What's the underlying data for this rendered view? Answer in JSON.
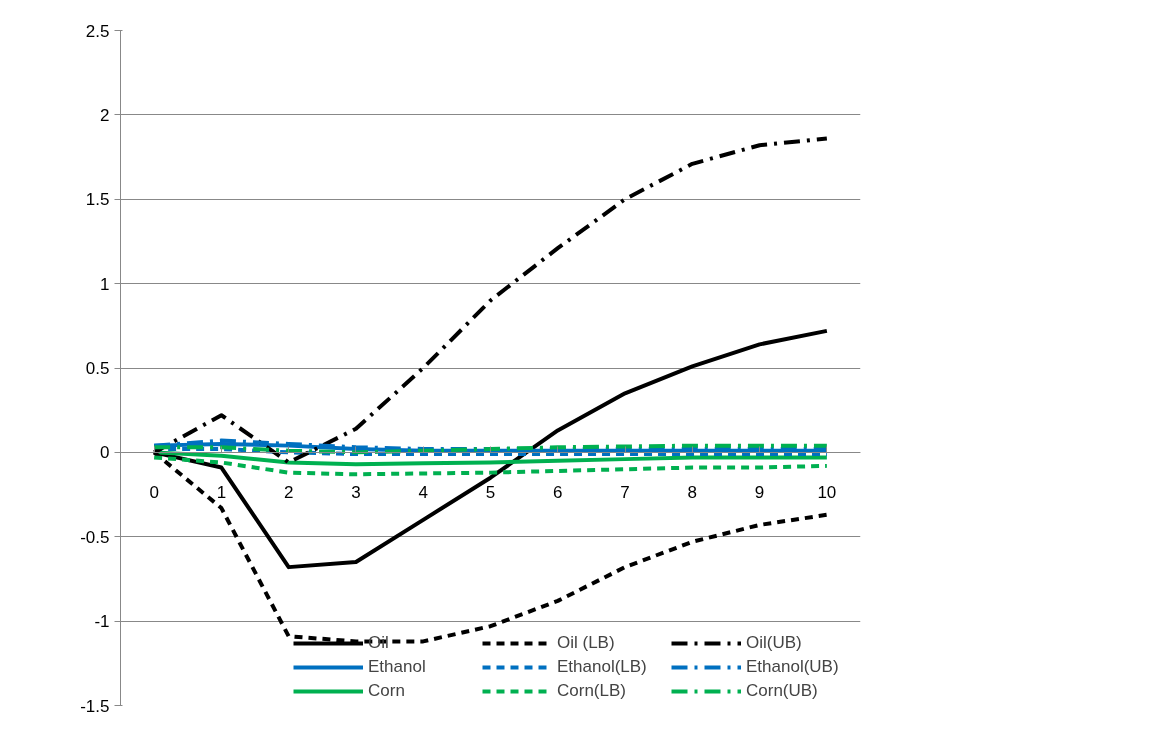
{
  "chart_data": {
    "type": "line",
    "x": [
      0,
      1,
      2,
      3,
      4,
      5,
      6,
      7,
      8,
      9,
      10
    ],
    "xlim": [
      -0.5,
      10.5
    ],
    "xticks": [
      0,
      1,
      2,
      3,
      4,
      5,
      6,
      7,
      8,
      9,
      10
    ],
    "ylim": [
      -1.5,
      2.5
    ],
    "yticks": [
      -1.5,
      -1,
      -0.5,
      0,
      0.5,
      1,
      1.5,
      2,
      2.5
    ],
    "grid": "y",
    "legend": "bottom",
    "series": [
      {
        "name": "Oil",
        "color": "#000000",
        "line_style": "solid",
        "values": [
          0,
          -0.09,
          -0.68,
          -0.65,
          -0.4,
          -0.15,
          0.13,
          0.35,
          0.51,
          0.64,
          0.72
        ]
      },
      {
        "name": "Ethanol",
        "color": "#0070c0",
        "line_style": "solid",
        "values": [
          0.04,
          0.05,
          0.04,
          0.02,
          0.01,
          0.01,
          0.01,
          0.01,
          0.01,
          0.01,
          0.01
        ]
      },
      {
        "name": "Corn",
        "color": "#00b050",
        "line_style": "solid",
        "values": [
          0,
          -0.02,
          -0.06,
          -0.07,
          -0.065,
          -0.06,
          -0.05,
          -0.04,
          -0.03,
          -0.03,
          -0.03
        ]
      },
      {
        "name": "Oil (LB)",
        "color": "#000000",
        "line_style": "dashed",
        "values": [
          0,
          -0.33,
          -1.09,
          -1.12,
          -1.12,
          -1.03,
          -0.88,
          -0.68,
          -0.53,
          -0.43,
          -0.37
        ]
      },
      {
        "name": "Ethanol(LB)",
        "color": "#0070c0",
        "line_style": "dashed",
        "values": [
          0.02,
          0.02,
          0,
          -0.01,
          -0.01,
          -0.01,
          -0.01,
          -0.01,
          -0.01,
          -0.01,
          -0.01
        ]
      },
      {
        "name": "Corn(LB)",
        "color": "#00b050",
        "line_style": "dashed",
        "values": [
          -0.03,
          -0.06,
          -0.12,
          -0.13,
          -0.125,
          -0.12,
          -0.11,
          -0.1,
          -0.09,
          -0.09,
          -0.08
        ]
      },
      {
        "name": "Oil(UB)",
        "color": "#000000",
        "line_style": "dashdot",
        "values": [
          0,
          0.22,
          -0.06,
          0.14,
          0.5,
          0.9,
          1.21,
          1.5,
          1.71,
          1.82,
          1.86
        ]
      },
      {
        "name": "Ethanol(UB)",
        "color": "#0070c0",
        "line_style": "dashdot",
        "values": [
          0.04,
          0.07,
          0.05,
          0.03,
          0.02,
          0.02,
          0.02,
          0.02,
          0.02,
          0.02,
          0.02
        ]
      },
      {
        "name": "Corn(UB)",
        "color": "#00b050",
        "line_style": "dashdot",
        "values": [
          0.03,
          0.03,
          0.01,
          0,
          0.01,
          0.02,
          0.03,
          0.035,
          0.04,
          0.04,
          0.04
        ]
      }
    ]
  }
}
